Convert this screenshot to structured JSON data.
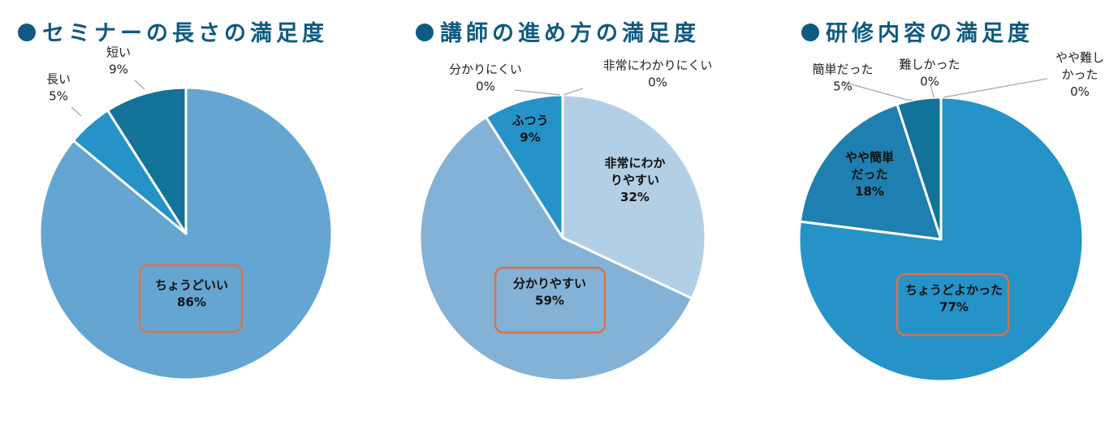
{
  "colors": {
    "title": "#0e5a82",
    "highlight_box": "#d9724a",
    "leader": "#a6a6a6",
    "slice_stroke": "#ffffff",
    "chart1": [
      "#64a6d1",
      "#2593c8",
      "#137298"
    ],
    "chart2": [
      "#b3cfe6",
      "#83b2d6",
      "#2593c8",
      "#2593c8",
      "#137298"
    ],
    "chart3": [
      "#2593c8",
      "#1e7fb0",
      "#137298",
      "#137298",
      "#137298"
    ]
  },
  "chart_data": [
    {
      "type": "pie",
      "title": "セミナーの長さの満足度",
      "slices": [
        {
          "name": "ちょうどいい",
          "value": 86,
          "label_lines": [
            "ちょうどいい",
            "86%"
          ],
          "highlight": true
        },
        {
          "name": "長い",
          "value": 5,
          "label_lines": [
            "長い",
            "5%"
          ],
          "highlight": false
        },
        {
          "name": "短い",
          "value": 9,
          "label_lines": [
            "短い",
            "9%"
          ],
          "highlight": false
        }
      ]
    },
    {
      "type": "pie",
      "title": "講師の進め方の満足度",
      "slices": [
        {
          "name": "非常にわかりやすい",
          "value": 32,
          "label_lines": [
            "非常にわか",
            "りやすい",
            "32%"
          ],
          "highlight": false
        },
        {
          "name": "分かりやすい",
          "value": 59,
          "label_lines": [
            "分かりやすい",
            "59%"
          ],
          "highlight": true
        },
        {
          "name": "ふつう",
          "value": 9,
          "label_lines": [
            "ふつう",
            "9%"
          ],
          "highlight": false
        },
        {
          "name": "分かりにくい",
          "value": 0,
          "label_lines": [
            "分かりにくい",
            "0%"
          ],
          "highlight": false
        },
        {
          "name": "非常にわかりにくい",
          "value": 0,
          "label_lines": [
            "非常にわかりにくい",
            "0%"
          ],
          "highlight": false
        }
      ]
    },
    {
      "type": "pie",
      "title": "研修内容の満足度",
      "slices": [
        {
          "name": "ちょうどよかった",
          "value": 77,
          "label_lines": [
            "ちょうどよかった",
            "77%"
          ],
          "highlight": true
        },
        {
          "name": "やや簡単だった",
          "value": 18,
          "label_lines": [
            "やや簡単",
            "だった",
            "18%"
          ],
          "highlight": false
        },
        {
          "name": "簡単だった",
          "value": 5,
          "label_lines": [
            "簡単だった",
            "5%"
          ],
          "highlight": false
        },
        {
          "name": "難しかった",
          "value": 0,
          "label_lines": [
            "難しかった",
            "0%"
          ],
          "highlight": false
        },
        {
          "name": "やや難しかった",
          "value": 0,
          "label_lines": [
            "やや難し",
            "かった",
            "0%"
          ],
          "highlight": false
        }
      ]
    }
  ]
}
